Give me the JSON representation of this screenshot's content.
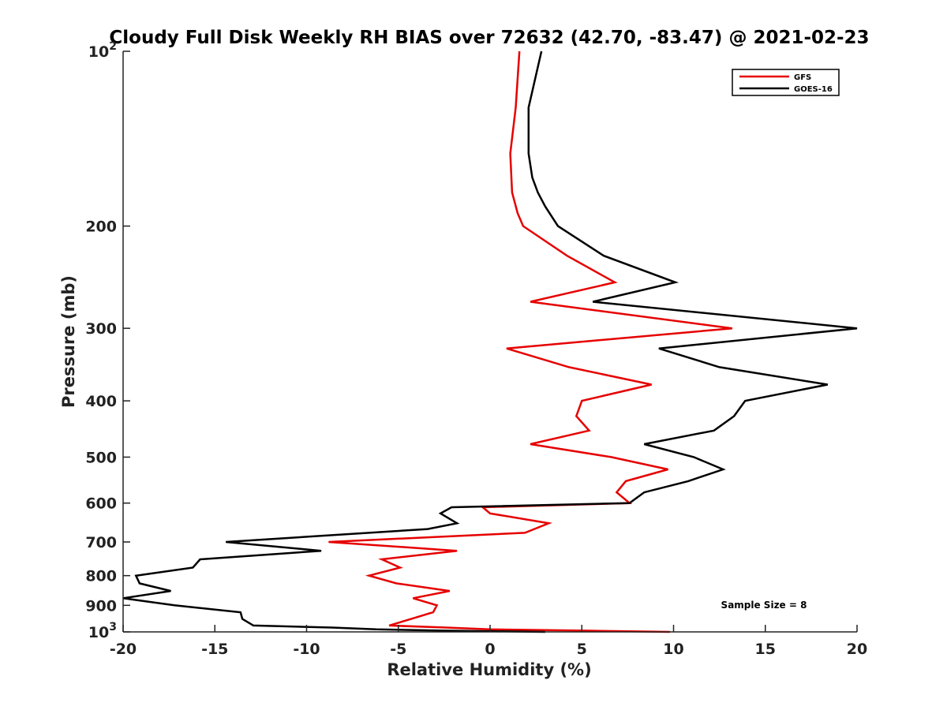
{
  "chart_data": {
    "type": "line",
    "title": "Cloudy Full Disk Weekly RH BIAS over 72632 (42.70, -83.47) @ 2021-02-23",
    "xlabel": "Relative Humidity (%)",
    "ylabel": "Pressure (mb)",
    "xlim": [
      -20,
      20
    ],
    "ylim": [
      100,
      1000
    ],
    "y_scale": "log",
    "y_reversed": true,
    "x_ticks": [
      -20,
      -15,
      -10,
      -5,
      0,
      5,
      10,
      15,
      20
    ],
    "x_tick_labels": [
      "-20",
      "-15",
      "-10",
      "-5",
      "0",
      "5",
      "10",
      "15",
      "20"
    ],
    "y_ticks": [
      100,
      200,
      300,
      400,
      500,
      600,
      700,
      800,
      900,
      1000
    ],
    "y_tick_labels": [
      {
        "base": "10",
        "exp": "2"
      },
      {
        "base": "200",
        "exp": ""
      },
      {
        "base": "300",
        "exp": ""
      },
      {
        "base": "400",
        "exp": ""
      },
      {
        "base": "500",
        "exp": ""
      },
      {
        "base": "600",
        "exp": ""
      },
      {
        "base": "700",
        "exp": ""
      },
      {
        "base": "800",
        "exp": ""
      },
      {
        "base": "900",
        "exp": ""
      },
      {
        "base": "10",
        "exp": "3"
      }
    ],
    "grid": false,
    "legend_position": "top-right",
    "annotation": "Sample Size = 8",
    "series": [
      {
        "name": "GFS",
        "color": "#e60000",
        "points": [
          [
            1.6,
            100
          ],
          [
            1.4,
            125
          ],
          [
            1.1,
            150
          ],
          [
            1.2,
            175
          ],
          [
            1.5,
            190
          ],
          [
            1.8,
            200
          ],
          [
            4.2,
            225
          ],
          [
            6.8,
            250
          ],
          [
            2.2,
            270
          ],
          [
            13.2,
            300
          ],
          [
            0.9,
            325
          ],
          [
            4.3,
            350
          ],
          [
            8.8,
            375
          ],
          [
            5.0,
            400
          ],
          [
            4.7,
            425
          ],
          [
            5.4,
            450
          ],
          [
            2.2,
            475
          ],
          [
            6.6,
            500
          ],
          [
            9.7,
            525
          ],
          [
            7.4,
            550
          ],
          [
            6.9,
            575
          ],
          [
            7.6,
            600
          ],
          [
            -0.4,
            610
          ],
          [
            0.0,
            625
          ],
          [
            3.2,
            650
          ],
          [
            1.9,
            675
          ],
          [
            -8.8,
            700
          ],
          [
            -1.8,
            725
          ],
          [
            -5.9,
            750
          ],
          [
            -4.9,
            775
          ],
          [
            -6.6,
            800
          ],
          [
            -5.1,
            825
          ],
          [
            -2.2,
            850
          ],
          [
            -4.2,
            875
          ],
          [
            -2.9,
            900
          ],
          [
            -3.1,
            925
          ],
          [
            -4.3,
            950
          ],
          [
            -5.5,
            975
          ],
          [
            -2.4,
            983
          ],
          [
            0.0,
            990
          ],
          [
            5.2,
            995
          ],
          [
            9.8,
            1000
          ]
        ]
      },
      {
        "name": "GOES-16",
        "color": "#000000",
        "points": [
          [
            2.8,
            100
          ],
          [
            2.1,
            125
          ],
          [
            2.1,
            150
          ],
          [
            2.3,
            165
          ],
          [
            2.6,
            175
          ],
          [
            3.0,
            185
          ],
          [
            3.7,
            200
          ],
          [
            6.2,
            225
          ],
          [
            10.1,
            250
          ],
          [
            5.6,
            270
          ],
          [
            20.0,
            300
          ],
          [
            9.2,
            325
          ],
          [
            12.5,
            350
          ],
          [
            18.4,
            375
          ],
          [
            13.9,
            400
          ],
          [
            13.3,
            425
          ],
          [
            12.2,
            450
          ],
          [
            8.4,
            475
          ],
          [
            11.1,
            500
          ],
          [
            12.7,
            525
          ],
          [
            10.8,
            550
          ],
          [
            8.4,
            575
          ],
          [
            7.6,
            600
          ],
          [
            -2.1,
            610
          ],
          [
            -2.7,
            625
          ],
          [
            -1.8,
            650
          ],
          [
            -3.4,
            665
          ],
          [
            -14.4,
            700
          ],
          [
            -9.2,
            725
          ],
          [
            -15.8,
            750
          ],
          [
            -16.2,
            775
          ],
          [
            -19.3,
            800
          ],
          [
            -19.1,
            825
          ],
          [
            -17.4,
            850
          ],
          [
            -20.0,
            875
          ],
          [
            -17.2,
            900
          ],
          [
            -13.6,
            925
          ],
          [
            -13.5,
            950
          ],
          [
            -12.9,
            975
          ],
          [
            -8.6,
            983
          ],
          [
            -6.2,
            990
          ],
          [
            -2.5,
            995
          ],
          [
            3.0,
            1000
          ]
        ]
      }
    ]
  }
}
